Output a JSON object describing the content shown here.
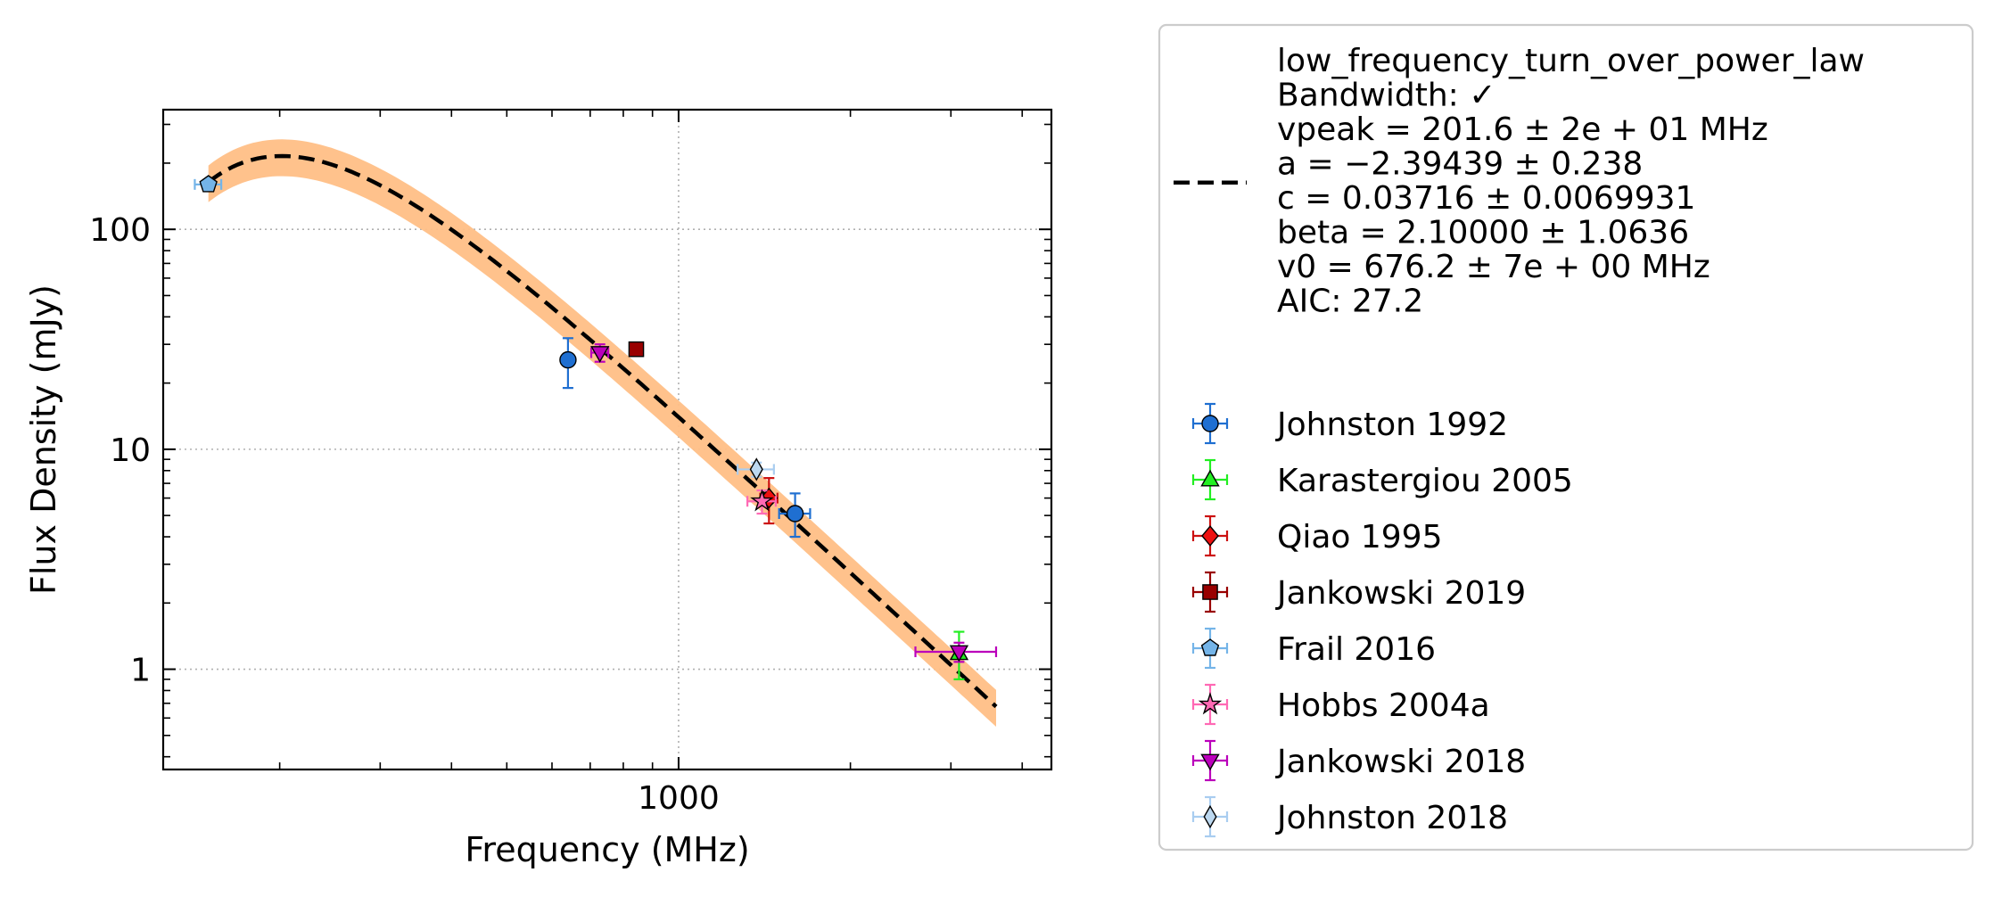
{
  "chart_data": {
    "type": "scatter",
    "xlabel": "Frequency (MHz)",
    "ylabel": "Flux Density (mJy)",
    "x_scale": "log",
    "y_scale": "log",
    "xlim": [
      125,
      4500
    ],
    "ylim": [
      0.35,
      350
    ],
    "x_major_ticks": [
      {
        "value": 1000,
        "label": "1000"
      }
    ],
    "x_minor_ticks": [
      200,
      300,
      400,
      500,
      600,
      700,
      800,
      900,
      2000,
      3000,
      4000
    ],
    "y_major_ticks": [
      {
        "value": 1,
        "label": "1"
      },
      {
        "value": 10,
        "label": "10"
      },
      {
        "value": 100,
        "label": "100"
      }
    ],
    "y_minor_ticks": [
      0.4,
      0.5,
      0.6,
      0.7,
      0.8,
      0.9,
      2,
      3,
      4,
      5,
      6,
      7,
      8,
      9,
      20,
      30,
      40,
      50,
      60,
      70,
      80,
      90,
      200,
      300
    ],
    "grid": true,
    "legend_position": "outside-right",
    "fit": {
      "legend_lines": [
        "low_frequency_turn_over_power_law",
        "Bandwidth: ✓",
        "vpeak = 201.6 ± 2e + 01 MHz",
        "a = −2.39439 ± 0.238",
        "c = 0.03716 ± 0.0069931",
        "beta = 2.10000 ± 1.0636",
        "v0 = 676.2 ± 7e + 00 MHz",
        "AIC: 27.2"
      ],
      "color": "#000000",
      "band_color": "#ffbf86",
      "x_range": [
        150,
        3600
      ],
      "params": {
        "vpeak": 201.6,
        "a": -2.39439,
        "c": 0.03716,
        "beta": 2.1,
        "v0": 676.2
      },
      "uncertainty_fraction": 0.19
    },
    "series": [
      {
        "name": "Johnston 1992",
        "marker": "circle",
        "color": "#1f6fd1",
        "ecolor": "#1f6fd1",
        "points": [
          {
            "x": 640,
            "y": 25.5,
            "yerr": [
              6.5,
              6.5
            ],
            "xerr": [
              0,
              0
            ]
          },
          {
            "x": 1600,
            "y": 5.1,
            "yerr": [
              1.1,
              1.2
            ],
            "xerr": [
              100,
              100
            ]
          }
        ]
      },
      {
        "name": "Karastergiou 2005",
        "marker": "triangle-up",
        "color": "#22ee22",
        "ecolor": "#22ee22",
        "points": [
          {
            "x": 3100,
            "y": 1.18,
            "yerr": [
              0.28,
              0.3
            ],
            "xerr": [
              0,
              0
            ]
          }
        ]
      },
      {
        "name": "Qiao 1995",
        "marker": "diamond",
        "color": "#ee1111",
        "ecolor": "#cc1111",
        "points": [
          {
            "x": 1440,
            "y": 6.0,
            "yerr": [
              1.4,
              1.4
            ],
            "xerr": [
              50,
              50
            ]
          }
        ]
      },
      {
        "name": "Jankowski 2019",
        "marker": "square",
        "color": "#990000",
        "ecolor": "#990000",
        "points": [
          {
            "x": 843,
            "y": 28.5,
            "yerr": [
              0,
              0
            ],
            "xerr": [
              0,
              0
            ]
          }
        ]
      },
      {
        "name": "Frail 2016",
        "marker": "pentagon",
        "color": "#74b4e8",
        "ecolor": "#74b4e8",
        "points": [
          {
            "x": 150,
            "y": 160,
            "yerr": [
              0,
              0
            ],
            "xerr": [
              8,
              8
            ]
          }
        ]
      },
      {
        "name": "Hobbs 2004a",
        "marker": "star",
        "color": "#ff69b4",
        "ecolor": "#ff69b4",
        "points": [
          {
            "x": 1400,
            "y": 5.8,
            "yerr": [
              0.7,
              0.7
            ],
            "xerr": [
              80,
              80
            ]
          }
        ]
      },
      {
        "name": "Jankowski 2018",
        "marker": "triangle-down",
        "color": "#bb00bb",
        "ecolor": "#bb00bb",
        "points": [
          {
            "x": 728,
            "y": 27.5,
            "yerr": [
              2.5,
              2.5
            ],
            "xerr": [
              25,
              25
            ]
          },
          {
            "x": 3100,
            "y": 1.2,
            "yerr": [
              0.12,
              0.12
            ],
            "xerr": [
              500,
              500
            ]
          }
        ]
      },
      {
        "name": "Johnston 2018",
        "marker": "thin-diamond",
        "color": "#bcd8f0",
        "ecolor": "#a9cdf0",
        "points": [
          {
            "x": 1369,
            "y": 8.1,
            "yerr": [
              0.6,
              0.6
            ],
            "xerr": [
              100,
              100
            ]
          }
        ]
      }
    ]
  }
}
